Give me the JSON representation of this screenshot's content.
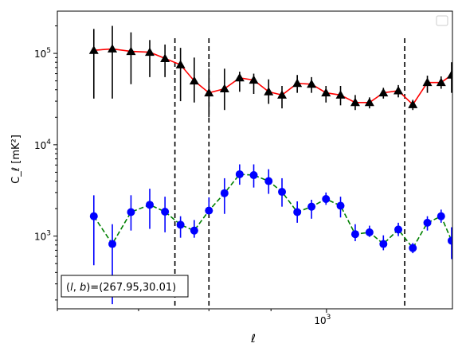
{
  "chart_data": {
    "type": "scatter",
    "title": "",
    "xlabel": "ℓ",
    "ylabel": "C_ℓ  [mK²]",
    "x_scale": "log",
    "y_scale": "log",
    "xlim": [
      600,
      1270
    ],
    "ylim": [
      160,
      290000
    ],
    "x_tick_labels": [
      {
        "value": 1000,
        "base": "10",
        "exp": "3"
      }
    ],
    "y_tick_labels": [
      {
        "value": 1000,
        "base": "10",
        "exp": "3"
      },
      {
        "value": 10000,
        "base": "10",
        "exp": "4"
      },
      {
        "value": 100000,
        "base": "10",
        "exp": "5"
      }
    ],
    "grid": false,
    "legend": {
      "position": "top-right",
      "entries": []
    },
    "annotation": "(l, b)=(267.95,30.01)",
    "annotation_parts": {
      "l": "l",
      "b": "b",
      "eq": ")=(267.95,30.01)"
    },
    "vlines": [
      750,
      800,
      1160
    ],
    "vline_color": "#000000",
    "series": [
      {
        "marker": "triangle",
        "color": "#000000",
        "line_color": "#ff0000",
        "line_style": "solid",
        "x": [
          643,
          666,
          690,
          715,
          736,
          758,
          778,
          800,
          824,
          848,
          871,
          896,
          919,
          946,
          972,
          999,
          1027,
          1056,
          1085,
          1114,
          1146,
          1178,
          1211,
          1243,
          1268
        ],
        "y": [
          108000,
          112000,
          105000,
          103000,
          88000,
          75000,
          50000,
          37000,
          41000,
          54000,
          51000,
          38000,
          35000,
          47000,
          46000,
          37000,
          35000,
          29000,
          29000,
          37000,
          39000,
          27500,
          48000,
          48000,
          58000
        ],
        "yerr_low": [
          32000,
          32000,
          46000,
          55000,
          55000,
          30000,
          29000,
          20000,
          24000,
          38000,
          36000,
          28000,
          25000,
          37000,
          37000,
          29000,
          27000,
          24000,
          25000,
          32000,
          33000,
          24000,
          37000,
          41000,
          37000
        ],
        "yerr_high": [
          185000,
          200000,
          170000,
          140000,
          125000,
          115000,
          90000,
          68000,
          68000,
          63000,
          60000,
          52000,
          44000,
          58000,
          55000,
          44000,
          44000,
          35000,
          33000,
          42000,
          45000,
          31000,
          57000,
          56000,
          80000
        ]
      },
      {
        "marker": "circle",
        "color": "#0000ff",
        "line_color": "#008000",
        "line_style": "dashed",
        "x": [
          643,
          666,
          690,
          715,
          736,
          758,
          778,
          800,
          824,
          848,
          871,
          896,
          919,
          946,
          972,
          999,
          1027,
          1056,
          1085,
          1114,
          1146,
          1178,
          1211,
          1243,
          1268
        ],
        "y": [
          1650,
          820,
          1830,
          2200,
          1850,
          1330,
          1150,
          1900,
          2950,
          4750,
          4650,
          4000,
          3050,
          1830,
          2100,
          2550,
          2150,
          1050,
          1100,
          820,
          1180,
          740,
          1400,
          1650,
          890
        ],
        "yerr_low": [
          480,
          180,
          1150,
          1200,
          1100,
          960,
          960,
          1800,
          1750,
          3650,
          3400,
          2900,
          2100,
          1400,
          1550,
          2200,
          1600,
          880,
          980,
          700,
          1000,
          650,
          1150,
          1400,
          560
        ],
        "yerr_high": [
          2800,
          1350,
          2800,
          3300,
          2700,
          1650,
          1500,
          2650,
          4300,
          6100,
          6100,
          5400,
          4300,
          2400,
          2500,
          3000,
          2700,
          1350,
          1300,
          1020,
          1400,
          840,
          1650,
          1950,
          1250
        ]
      }
    ]
  }
}
